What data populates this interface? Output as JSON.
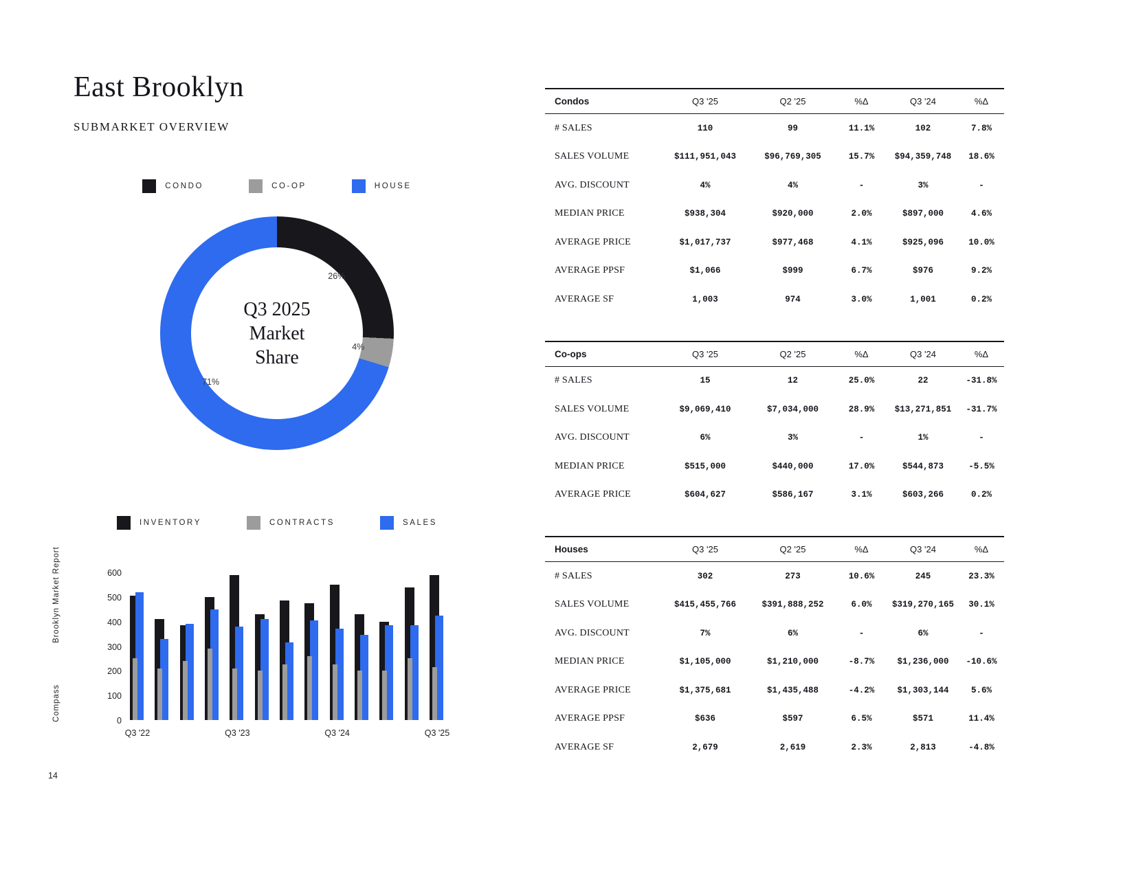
{
  "page": {
    "title": "East Brooklyn",
    "subtitle": "SUBMARKET OVERVIEW",
    "page_number": "14",
    "sidebar_brand": "Compass",
    "sidebar_report": "Brooklyn Market Report"
  },
  "colors": {
    "condo": "#17171c",
    "coop": "#9c9c9c",
    "house": "#2e6bee"
  },
  "chart_data": [
    {
      "type": "pie",
      "title": "Q3 2025 Market Share",
      "center_lines": [
        "Q3 2025",
        "Market",
        "Share"
      ],
      "legend_position": "top",
      "segments": [
        {
          "label": "CONDO",
          "value": 26,
          "color": "#17171c"
        },
        {
          "label": "CO-OP",
          "value": 4,
          "color": "#9c9c9c"
        },
        {
          "label": "HOUSE",
          "value": 71,
          "color": "#2e6bee"
        }
      ]
    },
    {
      "type": "bar",
      "title": "",
      "legend_position": "top",
      "ylim": [
        0,
        600
      ],
      "yticks": [
        0,
        100,
        200,
        300,
        400,
        500,
        600
      ],
      "x_tick_labels": [
        "Q3 '22",
        "Q3 '23",
        "Q3 '24",
        "Q3 '25"
      ],
      "x_tick_positions": [
        0,
        4,
        8,
        12
      ],
      "series": [
        {
          "name": "INVENTORY",
          "color": "#17171c",
          "values": [
            505,
            410,
            385,
            500,
            590,
            430,
            485,
            475,
            550,
            430,
            400,
            540,
            590
          ]
        },
        {
          "name": "CONTRACTS",
          "color": "#9c9c9c",
          "values": [
            250,
            210,
            240,
            290,
            210,
            200,
            225,
            260,
            225,
            200,
            200,
            250,
            215
          ]
        },
        {
          "name": "SALES",
          "color": "#2e6bee",
          "values": [
            520,
            330,
            390,
            450,
            380,
            410,
            315,
            405,
            370,
            345,
            385,
            385,
            425
          ]
        }
      ]
    }
  ],
  "tables": [
    {
      "title": "Condos",
      "columns": [
        "Q3 '25",
        "Q2 '25",
        "%Δ",
        "Q3 '24",
        "%Δ"
      ],
      "rows": [
        {
          "label": "# SALES",
          "values": [
            "110",
            "99",
            "11.1%",
            "102",
            "7.8%"
          ]
        },
        {
          "label": "SALES VOLUME",
          "values": [
            "$111,951,043",
            "$96,769,305",
            "15.7%",
            "$94,359,748",
            "18.6%"
          ]
        },
        {
          "label": "AVG. DISCOUNT",
          "values": [
            "4%",
            "4%",
            "-",
            "3%",
            "-"
          ]
        },
        {
          "label": "MEDIAN PRICE",
          "values": [
            "$938,304",
            "$920,000",
            "2.0%",
            "$897,000",
            "4.6%"
          ]
        },
        {
          "label": "AVERAGE PRICE",
          "values": [
            "$1,017,737",
            "$977,468",
            "4.1%",
            "$925,096",
            "10.0%"
          ]
        },
        {
          "label": "AVERAGE PPSF",
          "values": [
            "$1,066",
            "$999",
            "6.7%",
            "$976",
            "9.2%"
          ]
        },
        {
          "label": "AVERAGE SF",
          "values": [
            "1,003",
            "974",
            "3.0%",
            "1,001",
            "0.2%"
          ]
        }
      ]
    },
    {
      "title": "Co-ops",
      "columns": [
        "Q3 '25",
        "Q2 '25",
        "%Δ",
        "Q3 '24",
        "%Δ"
      ],
      "rows": [
        {
          "label": "# SALES",
          "values": [
            "15",
            "12",
            "25.0%",
            "22",
            "-31.8%"
          ]
        },
        {
          "label": "SALES VOLUME",
          "values": [
            "$9,069,410",
            "$7,034,000",
            "28.9%",
            "$13,271,851",
            "-31.7%"
          ]
        },
        {
          "label": "AVG. DISCOUNT",
          "values": [
            "6%",
            "3%",
            "-",
            "1%",
            "-"
          ]
        },
        {
          "label": "MEDIAN PRICE",
          "values": [
            "$515,000",
            "$440,000",
            "17.0%",
            "$544,873",
            "-5.5%"
          ]
        },
        {
          "label": "AVERAGE PRICE",
          "values": [
            "$604,627",
            "$586,167",
            "3.1%",
            "$603,266",
            "0.2%"
          ]
        }
      ]
    },
    {
      "title": "Houses",
      "columns": [
        "Q3 '25",
        "Q2 '25",
        "%Δ",
        "Q3 '24",
        "%Δ"
      ],
      "rows": [
        {
          "label": "# SALES",
          "values": [
            "302",
            "273",
            "10.6%",
            "245",
            "23.3%"
          ]
        },
        {
          "label": "SALES VOLUME",
          "values": [
            "$415,455,766",
            "$391,888,252",
            "6.0%",
            "$319,270,165",
            "30.1%"
          ]
        },
        {
          "label": "AVG. DISCOUNT",
          "values": [
            "7%",
            "6%",
            "-",
            "6%",
            "-"
          ]
        },
        {
          "label": "MEDIAN PRICE",
          "values": [
            "$1,105,000",
            "$1,210,000",
            "-8.7%",
            "$1,236,000",
            "-10.6%"
          ]
        },
        {
          "label": "AVERAGE PRICE",
          "values": [
            "$1,375,681",
            "$1,435,488",
            "-4.2%",
            "$1,303,144",
            "5.6%"
          ]
        },
        {
          "label": "AVERAGE PPSF",
          "values": [
            "$636",
            "$597",
            "6.5%",
            "$571",
            "11.4%"
          ]
        },
        {
          "label": "AVERAGE SF",
          "values": [
            "2,679",
            "2,619",
            "2.3%",
            "2,813",
            "-4.8%"
          ]
        }
      ]
    }
  ]
}
